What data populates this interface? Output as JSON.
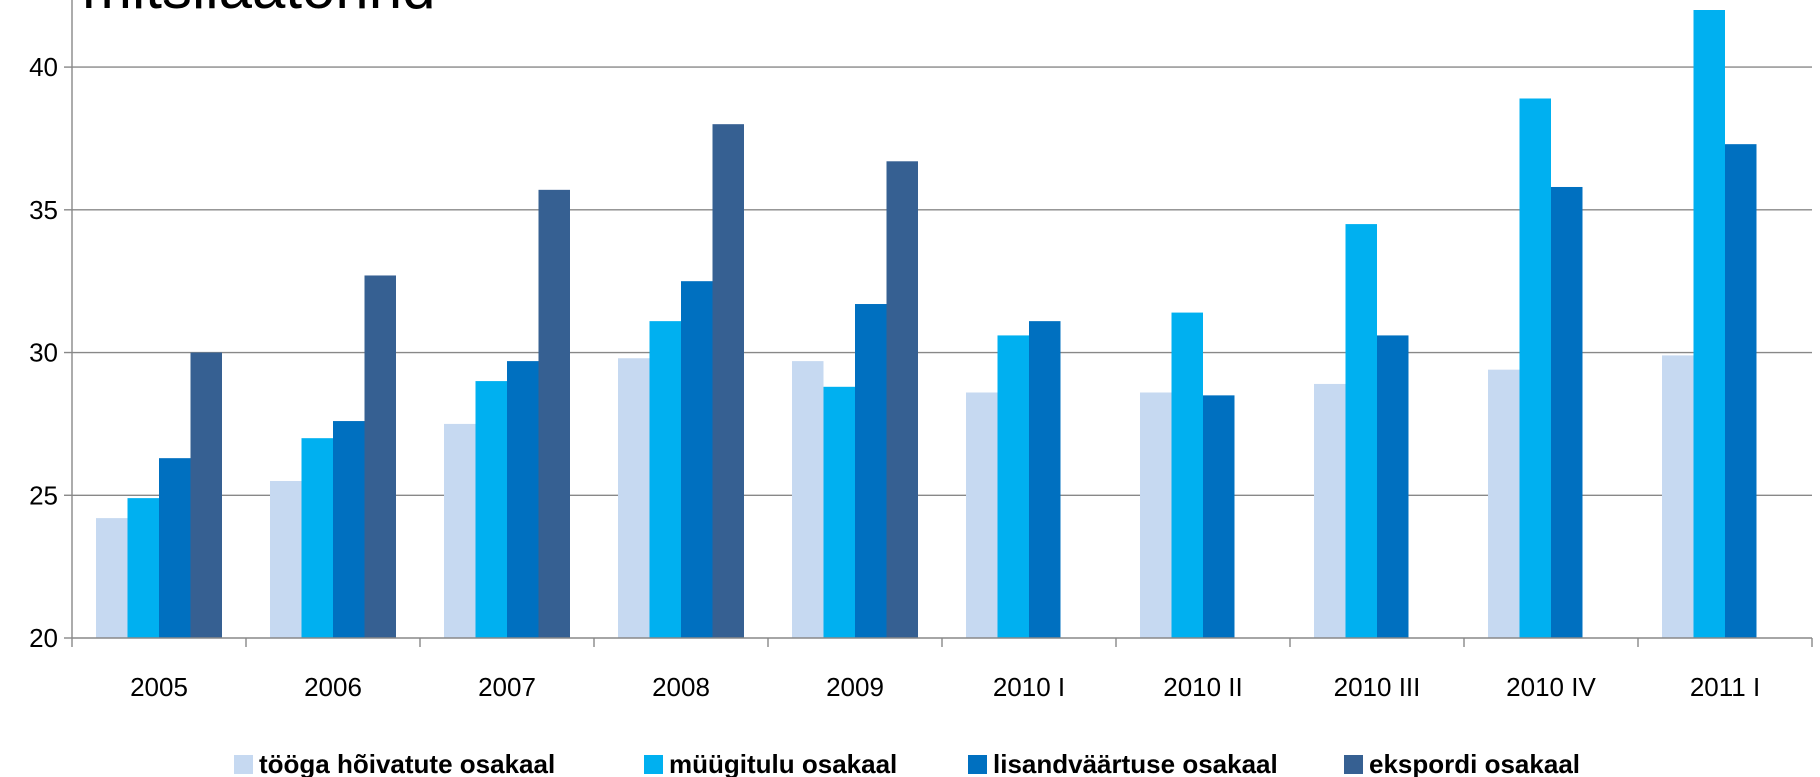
{
  "chart_data": {
    "type": "bar",
    "title": "mitsiläätorind",
    "xlabel": "",
    "ylabel": "",
    "ylim": [
      20,
      42
    ],
    "yticks": [
      20,
      25,
      30,
      35,
      40
    ],
    "grid": true,
    "legend_position": "bottom",
    "categories": [
      "2005",
      "2006",
      "2007",
      "2008",
      "2009",
      "2010 I",
      "2010 II",
      "2010 III",
      "2010 IV",
      "2011 I"
    ],
    "series": [
      {
        "name": "tööga hõivatute osakaal",
        "color": "#c6d9f1",
        "values": [
          24.2,
          25.5,
          27.5,
          29.8,
          29.7,
          28.6,
          28.6,
          28.9,
          29.4,
          29.9
        ]
      },
      {
        "name": "müügitulu osakaal",
        "color": "#00b0f0",
        "values": [
          24.9,
          27.0,
          29.0,
          31.1,
          28.8,
          30.6,
          31.4,
          34.5,
          38.9,
          42.0
        ]
      },
      {
        "name": "lisandväärtuse osakaal",
        "color": "#0070c0",
        "values": [
          26.3,
          27.6,
          29.7,
          32.5,
          31.7,
          31.1,
          28.5,
          30.6,
          35.8,
          37.3
        ]
      },
      {
        "name": "ekspordi osakaal",
        "color": "#366092",
        "values": [
          30.0,
          32.7,
          35.7,
          38.0,
          36.7,
          null,
          null,
          null,
          null,
          null
        ]
      }
    ]
  }
}
